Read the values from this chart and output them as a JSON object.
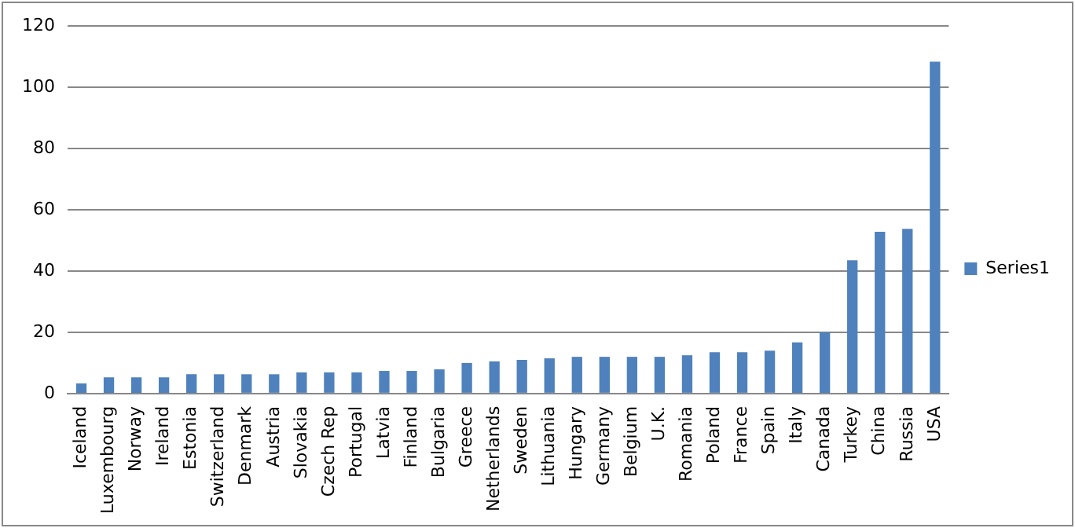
{
  "chart_data": {
    "type": "bar",
    "categories": [
      "Iceland",
      "Luxembourg",
      "Norway",
      "Ireland",
      "Estonia",
      "Switzerland",
      "Denmark",
      "Austria",
      "Slovakia",
      "Czech Rep",
      "Portugal",
      "Latvia",
      "Finland",
      "Bulgaria",
      "Greece",
      "Netherlands",
      "Sweden",
      "Lithuania",
      "Hungary",
      "Germany",
      "Belgium",
      "U.K.",
      "Romania",
      "Poland",
      "France",
      "Spain",
      "Italy",
      "Canada",
      "Turkey",
      "China",
      "Russia",
      "USA"
    ],
    "series": [
      {
        "name": "Series1",
        "color": "#4f81bd",
        "values": [
          3.3,
          5.3,
          5.3,
          5.3,
          6.3,
          6.3,
          6.3,
          6.3,
          6.9,
          6.9,
          6.9,
          7.4,
          7.4,
          7.9,
          10,
          10.5,
          11,
          11.5,
          12,
          12,
          12,
          12,
          12.5,
          13.5,
          13.5,
          14,
          16.7,
          20,
          43.5,
          52.8,
          53.8,
          108.4
        ]
      }
    ],
    "ylim": [
      0,
      120
    ],
    "yticks": [
      0,
      20,
      40,
      60,
      80,
      100,
      120
    ],
    "grid": "y",
    "legend": "right"
  }
}
